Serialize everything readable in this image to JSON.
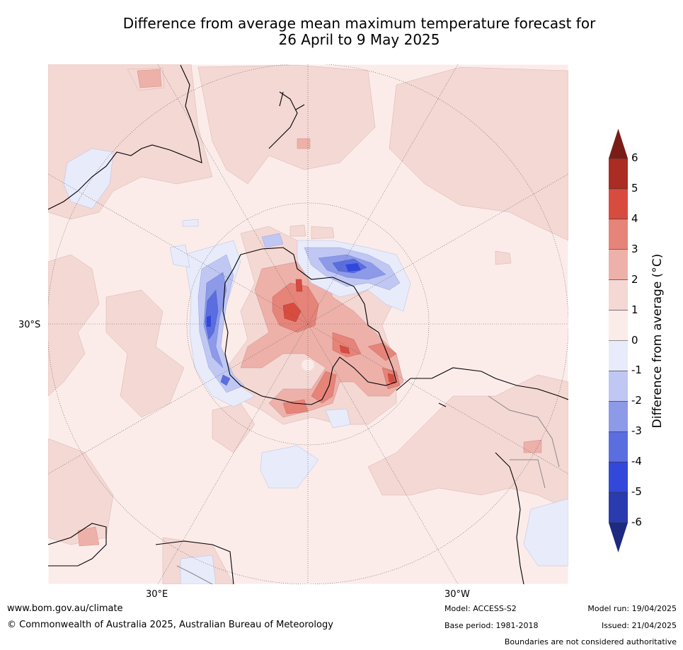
{
  "title": {
    "line1": "Difference from average mean maximum temperature forecast for",
    "line2": "26 April to 9 May 2025"
  },
  "map": {
    "projection": "south-polar-stereographic",
    "gridline_labels": {
      "lat": "30°S",
      "lon_east": "30°E",
      "lon_west": "30°W"
    },
    "land_outline_color": "#000000",
    "boundary_color": "#888888"
  },
  "colorbar": {
    "label": "Difference from average (°C)",
    "ticks": [
      "6",
      "5",
      "4",
      "3",
      "2",
      "1",
      "0",
      "-1",
      "-2",
      "-3",
      "-4",
      "-5",
      "-6"
    ],
    "bands": [
      {
        "range": "> 6",
        "color": "#7a1d17"
      },
      {
        "range": "5 to 6",
        "color": "#aa2c23"
      },
      {
        "range": "4 to 5",
        "color": "#d84c40"
      },
      {
        "range": "3 to 4",
        "color": "#e6847a"
      },
      {
        "range": "2 to 3",
        "color": "#edb1aa"
      },
      {
        "range": "1 to 2",
        "color": "#f4d8d4"
      },
      {
        "range": "0 to 1",
        "color": "#fbecea"
      },
      {
        "range": "-1 to 0",
        "color": "#e8ebfa"
      },
      {
        "range": "-2 to -1",
        "color": "#c0c7f2"
      },
      {
        "range": "-3 to -2",
        "color": "#8d9ae8"
      },
      {
        "range": "-4 to -3",
        "color": "#5b6edf"
      },
      {
        "range": "-5 to -4",
        "color": "#3148db"
      },
      {
        "range": "-6 to -5",
        "color": "#2a3bb0"
      },
      {
        "range": "< -6",
        "color": "#1c2a80"
      }
    ]
  },
  "footer": {
    "url": "www.bom.gov.au/climate",
    "copyright": "© Commonwealth of Australia 2025, Australian Bureau of Meteorology",
    "model": "Model: ACCESS-S2",
    "base_period": "Base period: 1981-2018",
    "model_run": "Model run: 19/04/2025",
    "issued": "Issued: 21/04/2025",
    "boundaries": "Boundaries are not considered authoritative"
  }
}
